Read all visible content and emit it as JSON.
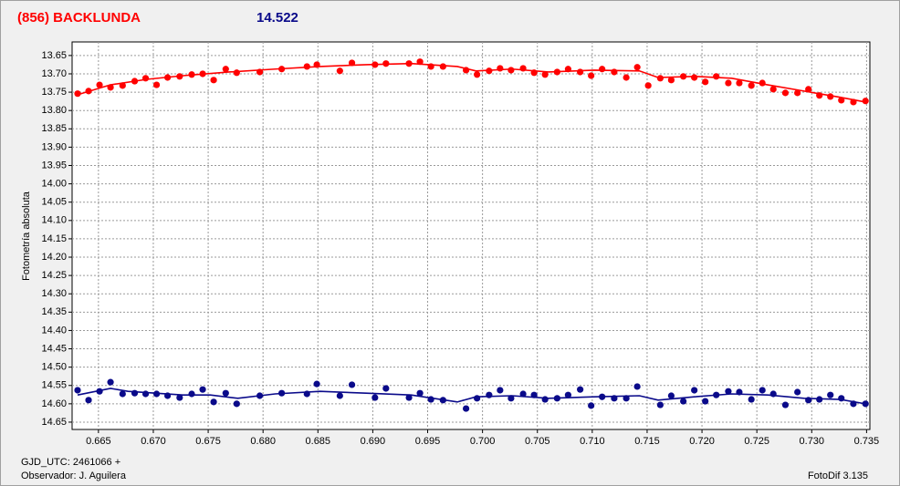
{
  "chart_data": {
    "type": "scatter",
    "title": "(856) BACKLUNDA",
    "subtitle": "14.522",
    "y_label": "Fotometría absoluta",
    "x_label": "GJD_UTC: 2461066 +",
    "observer": "Observador: J. Aguilera",
    "software": "FotoDif 3.135",
    "invert_y": true,
    "grid": true,
    "xlim": [
      0.6626,
      0.7353
    ],
    "ylim": [
      13.613,
      14.67
    ],
    "xticks": [
      0.665,
      {
        "value": 0.67,
        "label": "0.670"
      },
      0.675,
      {
        "value": 0.68,
        "label": "0.680"
      },
      0.685,
      {
        "value": 0.69,
        "label": "0.690"
      },
      0.695,
      {
        "value": 0.7,
        "label": "0.700"
      },
      0.705,
      {
        "value": 0.71,
        "label": "0.710"
      },
      0.715,
      {
        "value": 0.72,
        "label": "0.720"
      },
      0.725,
      {
        "value": 0.73,
        "label": "0.730"
      },
      0.735
    ],
    "yticks": [
      13.65,
      {
        "value": 13.7,
        "label": "13.70"
      },
      13.75,
      {
        "value": 13.8,
        "label": "13.80"
      },
      13.85,
      {
        "value": 13.9,
        "label": "13.90"
      },
      13.95,
      {
        "value": 14,
        "label": "14.00"
      },
      14.05,
      {
        "value": 14.1,
        "label": "14.10"
      },
      14.15,
      {
        "value": 14.2,
        "label": "14.20"
      },
      14.25,
      {
        "value": 14.3,
        "label": "14.30"
      },
      14.35,
      {
        "value": 14.4,
        "label": "14.40"
      },
      14.45,
      {
        "value": 14.5,
        "label": "14.50"
      },
      14.55,
      {
        "value": 14.6,
        "label": "14.60"
      },
      14.65
    ],
    "series": [
      {
        "color": "#ff0000",
        "mode": "markers",
        "x": [
          0.6631,
          0.6641,
          0.6651,
          0.6661,
          0.6672,
          0.6683,
          0.6693,
          0.6703,
          0.6713,
          0.6724,
          0.6735,
          0.6745,
          0.6755,
          0.6766,
          0.6776,
          0.6797,
          0.6817,
          0.684,
          0.6849,
          0.687,
          0.6881,
          0.6902,
          0.6912,
          0.6933,
          0.6943,
          0.6953,
          0.6964,
          0.6985,
          0.6995,
          0.7006,
          0.7016,
          0.7026,
          0.7037,
          0.7047,
          0.7057,
          0.7068,
          0.7078,
          0.7089,
          0.7099,
          0.7109,
          0.712,
          0.7131,
          0.7141,
          0.7151,
          0.7162,
          0.7172,
          0.7183,
          0.7193,
          0.7203,
          0.7213,
          0.7224,
          0.7234,
          0.7245,
          0.7255,
          0.7265,
          0.7276,
          0.7287,
          0.7297,
          0.7307,
          0.7317,
          0.7327,
          0.7338,
          0.7349
        ],
        "values": [
          13.754,
          13.747,
          13.73,
          13.737,
          13.732,
          13.72,
          13.712,
          13.73,
          13.71,
          13.707,
          13.702,
          13.7,
          13.717,
          13.687,
          13.697,
          13.695,
          13.687,
          13.68,
          13.675,
          13.692,
          13.67,
          13.675,
          13.672,
          13.672,
          13.667,
          13.68,
          13.68,
          13.69,
          13.702,
          13.692,
          13.685,
          13.69,
          13.685,
          13.697,
          13.702,
          13.695,
          13.687,
          13.695,
          13.705,
          13.687,
          13.695,
          13.71,
          13.682,
          13.732,
          13.712,
          13.717,
          13.707,
          13.71,
          13.722,
          13.707,
          13.725,
          13.725,
          13.732,
          13.725,
          13.742,
          13.752,
          13.752,
          13.742,
          13.759,
          13.762,
          13.772,
          13.777,
          13.774
        ]
      },
      {
        "color": "#0a0a8a",
        "mode": "markers",
        "x": [
          0.6631,
          0.6641,
          0.6651,
          0.6661,
          0.6672,
          0.6683,
          0.6693,
          0.6703,
          0.6713,
          0.6724,
          0.6735,
          0.6745,
          0.6755,
          0.6766,
          0.6776,
          0.6797,
          0.6817,
          0.684,
          0.6849,
          0.687,
          0.6881,
          0.6902,
          0.6912,
          0.6933,
          0.6943,
          0.6953,
          0.6964,
          0.6985,
          0.6995,
          0.7006,
          0.7016,
          0.7026,
          0.7037,
          0.7047,
          0.7057,
          0.7068,
          0.7078,
          0.7089,
          0.7099,
          0.7109,
          0.712,
          0.7131,
          0.7141,
          0.7162,
          0.7172,
          0.7183,
          0.7193,
          0.7203,
          0.7213,
          0.7224,
          0.7234,
          0.7245,
          0.7255,
          0.7265,
          0.7276,
          0.7287,
          0.7297,
          0.7307,
          0.7317,
          0.7327,
          0.7338,
          0.7349
        ],
        "values": [
          14.563,
          14.59,
          14.566,
          14.541,
          14.573,
          14.571,
          14.573,
          14.573,
          14.578,
          14.583,
          14.573,
          14.561,
          14.595,
          14.571,
          14.6,
          14.578,
          14.571,
          14.573,
          14.546,
          14.578,
          14.548,
          14.583,
          14.558,
          14.583,
          14.571,
          14.588,
          14.59,
          14.613,
          14.585,
          14.576,
          14.563,
          14.585,
          14.573,
          14.576,
          14.588,
          14.585,
          14.576,
          14.561,
          14.605,
          14.581,
          14.585,
          14.585,
          14.553,
          14.603,
          14.578,
          14.593,
          14.563,
          14.593,
          14.576,
          14.566,
          14.568,
          14.588,
          14.563,
          14.573,
          14.603,
          14.568,
          14.59,
          14.588,
          14.576,
          14.585,
          14.6,
          14.6
        ]
      },
      {
        "color": "#ff0000",
        "mode": "line",
        "x": [
          0.6631,
          0.6661,
          0.6694,
          0.6727,
          0.6769,
          0.6811,
          0.6852,
          0.6894,
          0.6935,
          0.6977,
          0.6994,
          0.7027,
          0.706,
          0.7102,
          0.7143,
          0.716,
          0.7193,
          0.7227,
          0.726,
          0.7293,
          0.7326,
          0.7349
        ],
        "values": [
          13.757,
          13.73,
          13.715,
          13.705,
          13.695,
          13.687,
          13.68,
          13.675,
          13.672,
          13.68,
          13.692,
          13.687,
          13.695,
          13.69,
          13.692,
          13.71,
          13.707,
          13.712,
          13.73,
          13.747,
          13.764,
          13.777
        ]
      },
      {
        "color": "#0a0a8a",
        "mode": "line",
        "x": [
          0.6631,
          0.6661,
          0.6677,
          0.6702,
          0.6727,
          0.6752,
          0.6777,
          0.6811,
          0.6852,
          0.6894,
          0.6935,
          0.6977,
          0.6994,
          0.7027,
          0.706,
          0.7102,
          0.7143,
          0.716,
          0.7193,
          0.7227,
          0.726,
          0.7293,
          0.7326,
          0.7349
        ],
        "values": [
          14.576,
          14.558,
          14.566,
          14.571,
          14.576,
          14.576,
          14.585,
          14.573,
          14.566,
          14.571,
          14.576,
          14.595,
          14.581,
          14.578,
          14.585,
          14.581,
          14.578,
          14.59,
          14.581,
          14.573,
          14.576,
          14.585,
          14.588,
          14.6
        ]
      }
    ]
  }
}
